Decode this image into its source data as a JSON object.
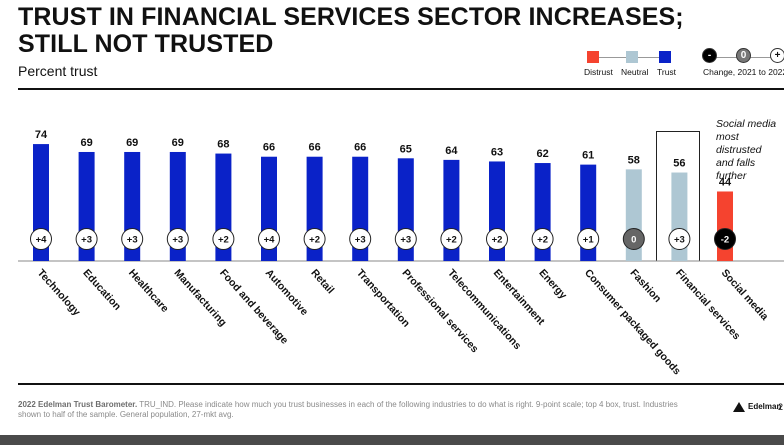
{
  "title": "TRUST IN FINANCIAL SERVICES SECTOR INCREASES;\nSTILL NOT TRUSTED",
  "subtitle": "Percent trust",
  "legend": {
    "distrust": "Distrust",
    "neutral": "Neutral",
    "trust": "Trust",
    "change_label": "Change, 2021 to 2022",
    "change_minus": "-",
    "change_zero": "0",
    "change_plus": "+"
  },
  "colors": {
    "trust": "#0a22c8",
    "neutral": "#aec7d3",
    "distrust": "#f5432f",
    "badge_neg": "#000000",
    "badge_zero": "#666666"
  },
  "annotation": "Social media\nmost distrusted\nand falls further",
  "footer": {
    "source_bold": "2022 Edelman Trust Barometer.",
    "source_text": "TRU_IND. Please indicate how much you trust businesses in each of the following industries to do what is right. 9-point scale; top 4 box, trust. Industries shown to half of the sample. General population, 27-mkt avg."
  },
  "brand": "Edelman",
  "page_number": "2",
  "chart_data": {
    "type": "bar",
    "ylim": [
      0,
      100
    ],
    "categories": [
      "Technology",
      "Education",
      "Healthcare",
      "Manufacturing",
      "Food and beverage",
      "Automotive",
      "Retail",
      "Transportation",
      "Professional services",
      "Telecommunications",
      "Entertainment",
      "Energy",
      "Consumer packaged goods",
      "Fashion",
      "Financial services",
      "Social media"
    ],
    "values": [
      74,
      69,
      69,
      69,
      68,
      66,
      66,
      66,
      65,
      64,
      63,
      62,
      61,
      58,
      56,
      44
    ],
    "status": [
      "trust",
      "trust",
      "trust",
      "trust",
      "trust",
      "trust",
      "trust",
      "trust",
      "trust",
      "trust",
      "trust",
      "trust",
      "trust",
      "neutral",
      "neutral",
      "distrust"
    ],
    "changes": [
      "+4",
      "+3",
      "+3",
      "+3",
      "+2",
      "+4",
      "+2",
      "+3",
      "+3",
      "+2",
      "+2",
      "+2",
      "+1",
      "0",
      "+3",
      "-2"
    ],
    "highlighted": "Financial services"
  }
}
